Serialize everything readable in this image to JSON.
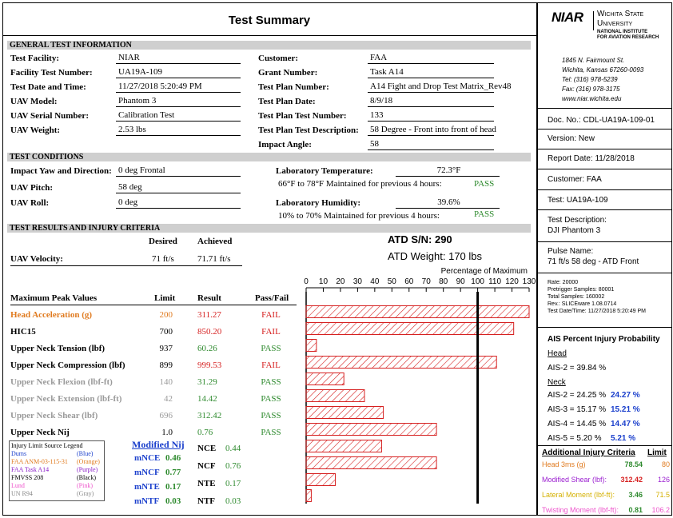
{
  "header": {
    "title": "Test Summary"
  },
  "logo": {
    "niar": "NIAR",
    "university_line1": "Wichita State",
    "university_line2": "University",
    "institute_line1": "National Institute",
    "institute_line2": "for Aviation Research"
  },
  "address": [
    "1845 N. Fairmount St.",
    "Wichita, Kansas 67260-0093",
    "Tel: (316) 978-5239",
    "Fax: (316) 978-3175",
    "www.niar.wichita.edu"
  ],
  "doc_info": {
    "doc_no": "Doc. No.:  CDL-UA19A-109-01",
    "version": "Version: New",
    "report_date": "Report Date: 11/28/2018",
    "customer": "Customer: FAA",
    "test": "Test: UA19A-109",
    "test_description_label": "Test Description:",
    "test_description": "DJI Phantom 3",
    "pulse_label": "Pulse Name:",
    "pulse": "71 ft/s 58 deg - ATD Front",
    "rate": "Rate: 20000",
    "pretrigger": "Pretrigger Samples: 80001",
    "total_samples": "Total Samples: 160002",
    "slice": "Rev.: SLICEware 1.08.0714",
    "datetime": "Test Date/Time: 11/27/2018 5:20:49 PM"
  },
  "ais": {
    "title": "AIS Percent Injury Probability",
    "head_label": "Head",
    "head": [
      {
        "label": "AIS-2 =  39.84 %",
        "extra": ""
      }
    ],
    "neck_label": "Neck",
    "neck": [
      {
        "label": "AIS-2 =  24.25 %",
        "extra": "24.27 %"
      },
      {
        "label": "AIS-3 =  15.17 %",
        "extra": "15.21 %"
      },
      {
        "label": "AIS-4 =  14.45 %",
        "extra": "14.47 %"
      },
      {
        "label": "AIS-5 =  5.20 %",
        "extra": "5.21 %"
      }
    ]
  },
  "additional": {
    "title": "Additional Injury Criteria",
    "limit_label": "Limit",
    "rows": [
      {
        "label": "Head 3ms (g)",
        "value": "78.54",
        "limit": "80",
        "color": "#e07b20"
      },
      {
        "label": "Modified Shear (lbf):",
        "value": "312.42",
        "limit": "126",
        "color": "#9b1fd0"
      },
      {
        "label": "Lateral Moment (lbf-ft):",
        "value": "3.46",
        "limit": "71.5",
        "color": "#d4b000"
      },
      {
        "label": "Twisting Moment (lbf-ft):",
        "value": "0.81",
        "limit": "106.2",
        "color": "#ee55cc"
      }
    ]
  },
  "general": {
    "section_title": "GENERAL TEST INFORMATION",
    "left": [
      {
        "label": "Test Facility:",
        "value": "NIAR"
      },
      {
        "label": "Facility Test Number:",
        "value": "UA19A-109"
      },
      {
        "label": "Test Date and Time:",
        "value": "11/27/2018 5:20:49 PM"
      },
      {
        "label": "UAV Model:",
        "value": "Phantom 3"
      },
      {
        "label": "UAV Serial Number:",
        "value": "Calibration Test"
      },
      {
        "label": "UAV Weight:",
        "value": "2.53 lbs"
      }
    ],
    "right": [
      {
        "label": "Customer:",
        "value": "FAA"
      },
      {
        "label": "Grant Number:",
        "value": "Task A14"
      },
      {
        "label": "Test Plan Number:",
        "value": "A14 Fight and Drop Test Matrix_Rev48"
      },
      {
        "label": "Test Plan Date:",
        "value": "8/9/18"
      },
      {
        "label": "Test Plan Test Number:",
        "value": "133"
      },
      {
        "label": "Test Plan Test Description:",
        "value": "58 Degree - Front into front of head"
      },
      {
        "label": "Impact Angle:",
        "value": "58"
      }
    ]
  },
  "conditions": {
    "section_title": "TEST CONDITIONS",
    "yaw_label": "Impact Yaw and Direction:",
    "yaw": "0 deg Frontal",
    "pitch_label": "UAV Pitch:",
    "pitch": "58 deg",
    "roll_label": "UAV Roll:",
    "roll": "0 deg",
    "temp_label": "Laboratory Temperature:",
    "temp": "72.3°F",
    "temp_note": "66°F to 78°F Maintained for previous 4 hours:",
    "temp_status": "PASS",
    "hum_label": "Laboratory Humidity:",
    "hum": "39.6%",
    "hum_note": "10% to 70% Maintained for previous 4 hours:",
    "hum_status": "PASS"
  },
  "results": {
    "section_title": "TEST RESULTS AND INJURY CRITERIA",
    "desired_label": "Desired",
    "achieved_label": "Achieved",
    "velocity_label": "UAV Velocity:",
    "velocity_desired": "71 ft/s",
    "velocity_achieved": "71.71 ft/s",
    "atd_sn": "ATD S/N:  290",
    "atd_weight": "ATD Weight:  170 lbs",
    "col_headers": {
      "name": "Maximum Peak Values",
      "limit": "Limit",
      "result": "Result",
      "status": "Pass/Fail"
    },
    "rows": [
      {
        "name": "Head Acceleration (g)",
        "limit": "200",
        "result": "311.27",
        "status": "FAIL",
        "name_color": "#e07b20",
        "limit_color": "#e07b20"
      },
      {
        "name": "HIC15",
        "limit": "700",
        "result": "850.20",
        "status": "FAIL",
        "name_color": "#000000",
        "limit_color": "#000000"
      },
      {
        "name": "Upper Neck Tension (lbf)",
        "limit": "937",
        "result": "60.26",
        "status": "PASS",
        "name_color": "#000000",
        "limit_color": "#000000"
      },
      {
        "name": "Upper Neck Compression (lbf)",
        "limit": "899",
        "result": "999.53",
        "status": "FAIL",
        "name_color": "#000000",
        "limit_color": "#000000"
      },
      {
        "name": "Upper Neck Flexion (lbf-ft)",
        "limit": "140",
        "result": "31.29",
        "status": "PASS",
        "name_color": "#9a9a9a",
        "limit_color": "#9a9a9a"
      },
      {
        "name": "Upper Neck Extension (lbf-ft)",
        "limit": "42",
        "result": "14.42",
        "status": "PASS",
        "name_color": "#9a9a9a",
        "limit_color": "#9a9a9a"
      },
      {
        "name": "Upper Neck Shear (lbf)",
        "limit": "696",
        "result": "312.42",
        "status": "PASS",
        "name_color": "#9a9a9a",
        "limit_color": "#9a9a9a"
      },
      {
        "name": "Upper Neck Nij",
        "limit": "1.0",
        "result": "0.76",
        "status": "PASS",
        "name_color": "#000000",
        "limit_color": "#000000"
      }
    ],
    "legend": [
      {
        "source": "Injury Limit Source Legend",
        "tag": "",
        "color": "#000000"
      },
      {
        "source": "Dums",
        "tag": "(Blue)",
        "color": "#1a3fcc"
      },
      {
        "source": "FAA ANM-03-115-31",
        "tag": "(Orange)",
        "color": "#e07b20"
      },
      {
        "source": "FAA Task A14",
        "tag": "(Purple)",
        "color": "#8a1cc8"
      },
      {
        "source": "FMVSS 208",
        "tag": "(Black)",
        "color": "#000000"
      },
      {
        "source": "Lund",
        "tag": "(Pink)",
        "color": "#ee55cc"
      },
      {
        "source": "UN R94",
        "tag": "(Gray)",
        "color": "#888888"
      }
    ],
    "nij_title": "Modified Nij",
    "nij_left": [
      {
        "label": "mNCE",
        "value": "0.46"
      },
      {
        "label": "mNCF",
        "value": "0.77"
      },
      {
        "label": "mNTE",
        "value": "0.17"
      },
      {
        "label": "mNTF",
        "value": "0.03"
      }
    ],
    "nij_right": [
      {
        "label": "NCE",
        "value": "0.44"
      },
      {
        "label": "NCF",
        "value": "0.76"
      },
      {
        "label": "NTE",
        "value": "0.17"
      },
      {
        "label": "NTF",
        "value": "0.03"
      }
    ]
  },
  "chart_data": {
    "type": "bar",
    "title": "Percentage of Maximum",
    "xlim": [
      0,
      130
    ],
    "ticks": [
      0,
      10,
      20,
      30,
      40,
      50,
      60,
      70,
      80,
      90,
      100,
      110,
      120,
      130
    ],
    "reference_line": 100,
    "categories": [
      "Head Acceleration (g)",
      "HIC15",
      "Upper Neck Tension (lbf)",
      "Upper Neck Compression (lbf)",
      "Upper Neck Flexion (lbf-ft)",
      "Upper Neck Extension (lbf-ft)",
      "Upper Neck Shear (lbf)",
      "Upper Neck Nij",
      "NCE",
      "NCF",
      "NTE",
      "NTF"
    ],
    "values": [
      130,
      121,
      6,
      111,
      22,
      34,
      45,
      76,
      44,
      76,
      17,
      3
    ],
    "bar_color": "#d62020"
  }
}
